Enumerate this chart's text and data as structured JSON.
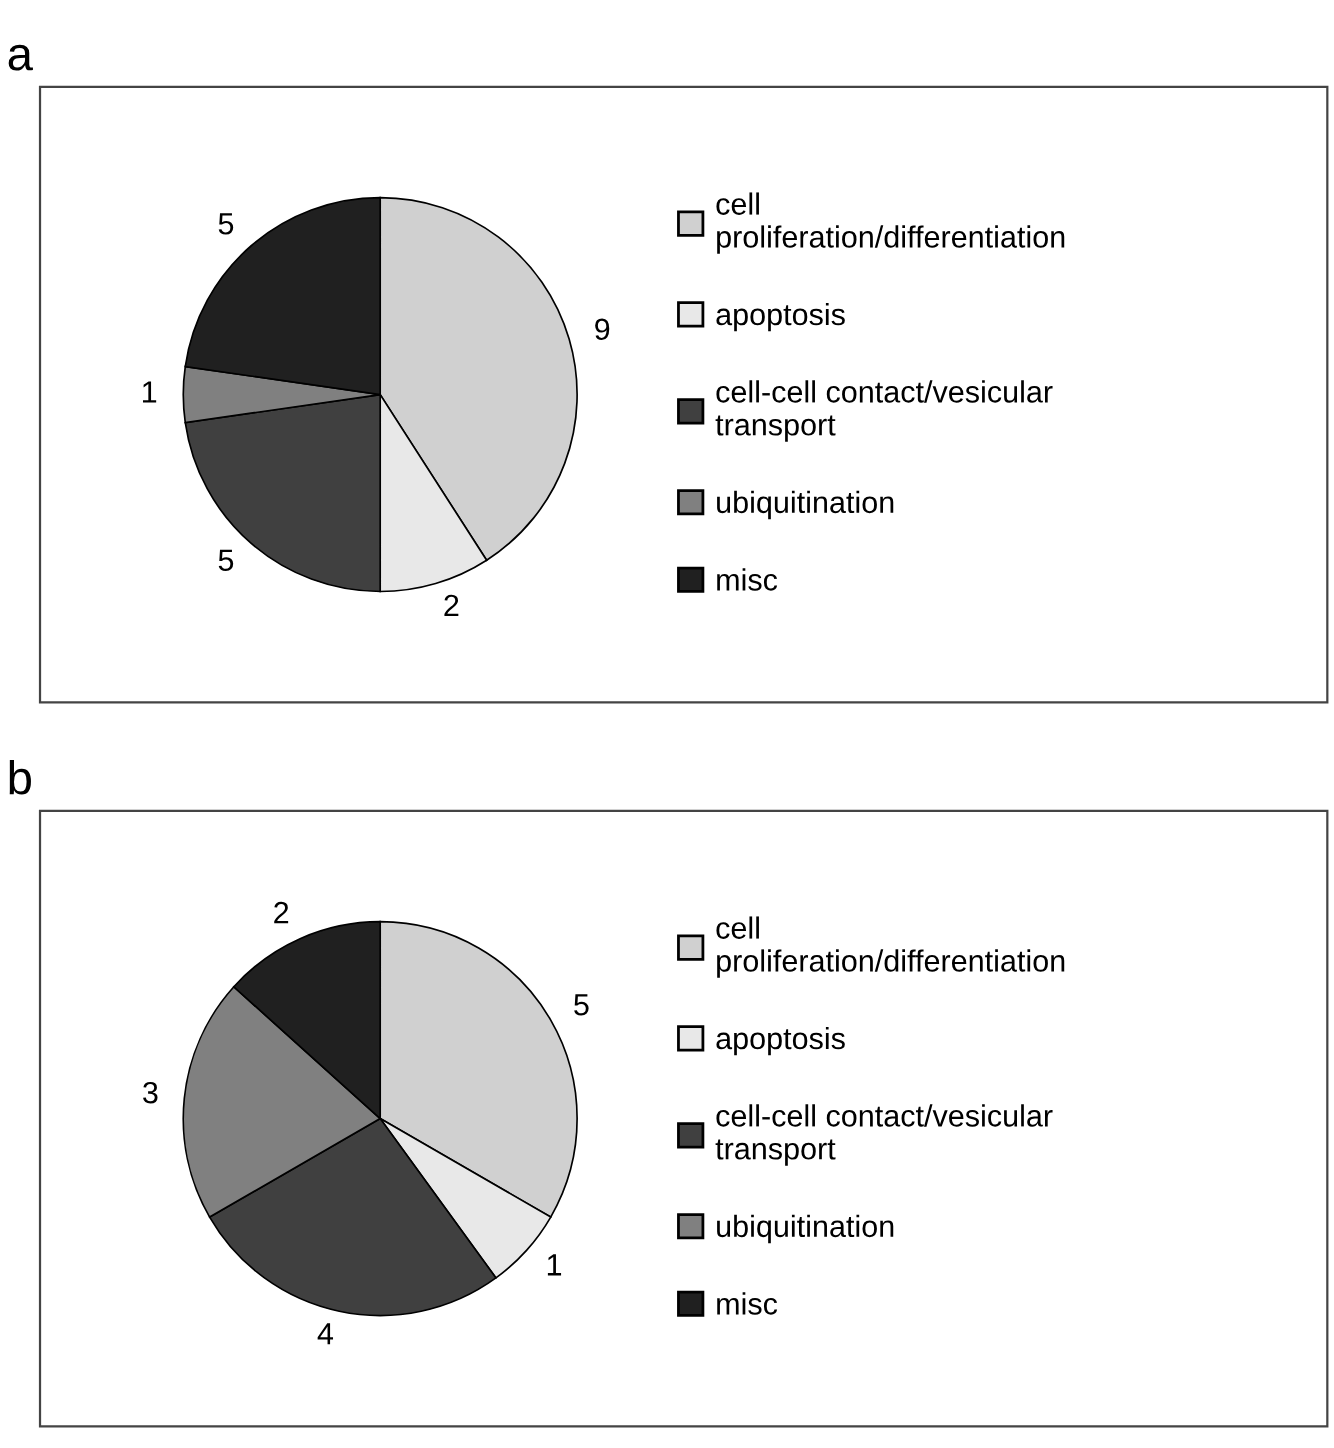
{
  "chart_data": [
    {
      "type": "pie",
      "title": "a",
      "categories": [
        "cell\nproliferation/differentiation",
        "apoptosis",
        "cell-cell contact/vesicular\ntransport",
        "ubiquitination",
        "misc"
      ],
      "values": [
        9,
        2,
        5,
        1,
        5
      ],
      "colors": [
        "#d0d0d0",
        "#e8e8e8",
        "#404040",
        "#808080",
        "#202020"
      ],
      "data_labels": true,
      "legend": "right"
    },
    {
      "type": "pie",
      "title": "b",
      "categories": [
        "cell\nproliferation/differentiation",
        "apoptosis",
        "cell-cell contact/vesicular\ntransport",
        "ubiquitination",
        "misc"
      ],
      "values": [
        5,
        1,
        4,
        3,
        2
      ],
      "colors": [
        "#d0d0d0",
        "#e8e8e8",
        "#404040",
        "#808080",
        "#202020"
      ],
      "data_labels": true,
      "legend": "right"
    }
  ]
}
